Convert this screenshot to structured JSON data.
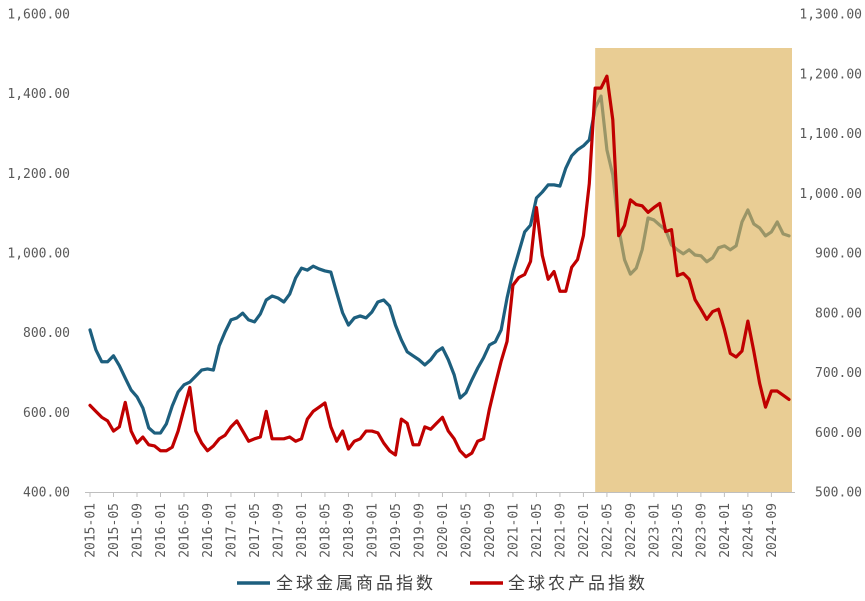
{
  "chart_data": {
    "type": "line",
    "legend_position": "bottom",
    "grid": false,
    "x": [
      "2015-01",
      "2015-02",
      "2015-03",
      "2015-04",
      "2015-05",
      "2015-06",
      "2015-07",
      "2015-08",
      "2015-09",
      "2015-10",
      "2015-11",
      "2015-12",
      "2016-01",
      "2016-02",
      "2016-03",
      "2016-04",
      "2016-05",
      "2016-06",
      "2016-07",
      "2016-08",
      "2016-09",
      "2016-10",
      "2016-11",
      "2016-12",
      "2017-01",
      "2017-02",
      "2017-03",
      "2017-04",
      "2017-05",
      "2017-06",
      "2017-07",
      "2017-08",
      "2017-09",
      "2017-10",
      "2017-11",
      "2017-12",
      "2018-01",
      "2018-02",
      "2018-03",
      "2018-04",
      "2018-05",
      "2018-06",
      "2018-07",
      "2018-08",
      "2018-09",
      "2018-10",
      "2018-11",
      "2018-12",
      "2019-01",
      "2019-02",
      "2019-03",
      "2019-04",
      "2019-05",
      "2019-06",
      "2019-07",
      "2019-08",
      "2019-09",
      "2019-10",
      "2019-11",
      "2019-12",
      "2020-01",
      "2020-02",
      "2020-03",
      "2020-04",
      "2020-05",
      "2020-06",
      "2020-07",
      "2020-08",
      "2020-09",
      "2020-10",
      "2020-11",
      "2020-12",
      "2021-01",
      "2021-02",
      "2021-03",
      "2021-04",
      "2021-05",
      "2021-06",
      "2021-07",
      "2021-08",
      "2021-09",
      "2021-10",
      "2021-11",
      "2021-12",
      "2022-01",
      "2022-02",
      "2022-03",
      "2022-04",
      "2022-05",
      "2022-06",
      "2022-07",
      "2022-08",
      "2022-09",
      "2022-10",
      "2022-11",
      "2022-12",
      "2023-01",
      "2023-02",
      "2023-03",
      "2023-04",
      "2023-05",
      "2023-06",
      "2023-07",
      "2023-08",
      "2023-09",
      "2023-10",
      "2023-11",
      "2023-12",
      "2024-01",
      "2024-02",
      "2024-03",
      "2024-04",
      "2024-05",
      "2024-06",
      "2024-07",
      "2024-08",
      "2024-09",
      "2024-10",
      "2024-11",
      "2024-12"
    ],
    "x_tick_labels": [
      "2015-01",
      "2015-05",
      "2015-09",
      "2016-01",
      "2016-05",
      "2016-09",
      "2017-01",
      "2017-05",
      "2017-09",
      "2018-01",
      "2018-05",
      "2018-09",
      "2019-01",
      "2019-05",
      "2019-09",
      "2020-01",
      "2020-05",
      "2020-09",
      "2021-01",
      "2021-05",
      "2021-09",
      "2022-01",
      "2022-05",
      "2022-09",
      "2023-01",
      "2023-05",
      "2023-09",
      "2024-01",
      "2024-05",
      "2024-09"
    ],
    "y_left": {
      "range": [
        400,
        1600
      ],
      "ticks": [
        1600,
        1400,
        1200,
        1000,
        800,
        600,
        400
      ],
      "tick_labels": [
        "1,600.00",
        "1,400.00",
        "1,200.00",
        "1,000.00",
        "800.00",
        "600.00",
        "400.00"
      ]
    },
    "y_right": {
      "range": [
        500,
        1300
      ],
      "ticks": [
        1300,
        1200,
        1100,
        1000,
        900,
        800,
        700,
        600,
        500
      ],
      "tick_labels": [
        "1,300.00",
        "1,200.00",
        "1,100.00",
        "1,000.00",
        "900.00",
        "800.00",
        "700.00",
        "600.00",
        "500.00"
      ]
    },
    "series": [
      {
        "name": "全球金属商品指数",
        "axis": "left",
        "color": "#1D5F7E",
        "values": [
          807,
          757,
          727,
          727,
          742,
          717,
          686,
          656,
          639,
          611,
          561,
          548,
          548,
          571,
          616,
          651,
          669,
          676,
          691,
          706,
          709,
          706,
          767,
          802,
          832,
          837,
          849,
          832,
          827,
          847,
          882,
          892,
          887,
          877,
          897,
          937,
          962,
          957,
          967,
          960,
          955,
          952,
          900,
          850,
          819,
          837,
          842,
          837,
          852,
          877,
          882,
          867,
          819,
          782,
          752,
          742,
          732,
          719,
          732,
          752,
          762,
          732,
          694,
          636,
          649,
          681,
          711,
          737,
          769,
          777,
          807,
          887,
          952,
          1002,
          1053,
          1070,
          1138,
          1153,
          1171,
          1171,
          1168,
          1213,
          1244,
          1259,
          1269,
          1284,
          1364,
          1394,
          1259,
          1196,
          1063,
          983,
          947,
          962,
          1008,
          1088,
          1083,
          1070,
          1058,
          1020,
          1008,
          998,
          1008,
          995,
          993,
          978,
          988,
          1013,
          1018,
          1008,
          1018,
          1078,
          1108,
          1073,
          1063,
          1043,
          1053,
          1078,
          1048,
          1043
        ]
      },
      {
        "name": "全球农产品指数",
        "axis": "right",
        "color": "#C00000",
        "values": [
          645,
          635,
          625,
          619,
          602,
          609,
          650,
          602,
          582,
          592,
          579,
          577,
          569,
          569,
          575,
          602,
          639,
          675,
          602,
          582,
          569,
          577,
          589,
          595,
          609,
          619,
          602,
          585,
          589,
          592,
          635,
          589,
          589,
          589,
          592,
          585,
          589,
          622,
          635,
          642,
          649,
          609,
          585,
          602,
          572,
          585,
          589,
          602,
          602,
          599,
          582,
          569,
          562,
          622,
          615,
          579,
          579,
          609,
          605,
          615,
          625,
          602,
          589,
          569,
          559,
          565,
          585,
          589,
          639,
          680,
          719,
          752,
          846,
          859,
          864,
          886,
          976,
          896,
          856,
          869,
          836,
          836,
          876,
          889,
          929,
          1016,
          1176,
          1176,
          1196,
          1123,
          929,
          946,
          989,
          981,
          979,
          968,
          976,
          983,
          936,
          939,
          862,
          866,
          856,
          822,
          806,
          789,
          802,
          806,
          772,
          732,
          726,
          736,
          786,
          736,
          682,
          642,
          669,
          669,
          662,
          655
        ]
      }
    ],
    "highlight": {
      "from": "2022-03",
      "to": "2024-12",
      "color": "#DDB25A"
    }
  }
}
